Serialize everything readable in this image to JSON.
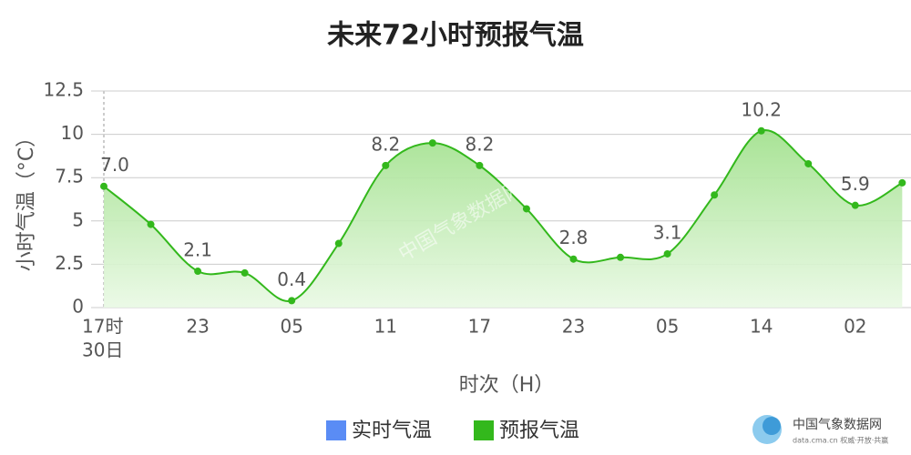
{
  "chart_data": {
    "type": "line",
    "title": "未来72小时预报气温",
    "y_label": "小时气温（°C）",
    "x_label": "时次（H）",
    "categories": [
      "17时",
      null,
      "23",
      null,
      "05",
      null,
      "11",
      null,
      "17",
      null,
      "23",
      null,
      "05",
      null,
      "14",
      null,
      "02",
      null
    ],
    "first_category_date": "30日",
    "series": [
      {
        "name": "实时气温",
        "color": "#5a8cf5",
        "values": [
          null,
          null,
          null,
          null,
          null,
          null,
          null,
          null,
          null,
          null,
          null,
          null,
          null,
          null,
          null,
          null,
          null,
          null
        ]
      },
      {
        "name": "预报气温",
        "color": "#33b81c",
        "values": [
          7.0,
          4.8,
          2.1,
          2.0,
          0.4,
          3.7,
          8.2,
          9.5,
          8.2,
          5.7,
          2.8,
          2.9,
          3.1,
          6.5,
          10.2,
          8.3,
          5.9,
          7.2
        ],
        "value_labels": [
          "7.0",
          null,
          "2.1",
          null,
          "0.4",
          null,
          "8.2",
          null,
          "8.2",
          null,
          "2.8",
          null,
          "3.1",
          null,
          "10.2",
          null,
          "5.9",
          null
        ]
      }
    ],
    "ylim": [
      0,
      12.5
    ],
    "yticks": [
      0,
      2.5,
      5,
      7.5,
      10,
      12.5
    ],
    "grid": true,
    "watermark": {
      "name": "中国气象数据网",
      "tagline": "data.cma.cn 权威·开放·共赢"
    }
  }
}
